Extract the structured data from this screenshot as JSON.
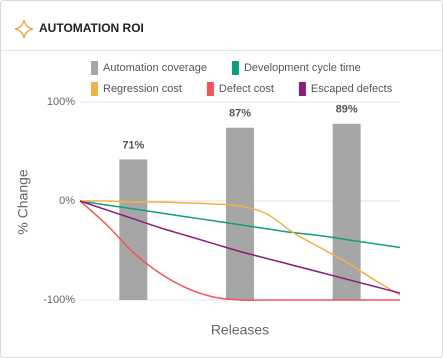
{
  "chart_data": {
    "type": "line",
    "title": "AUTOMATION ROI",
    "ylabel": "% Change",
    "xlabel": "Releases",
    "xlim": [
      0,
      3
    ],
    "ylim": [
      -100,
      100
    ],
    "yticks": [
      {
        "value": 100,
        "label": "100%"
      },
      {
        "value": 0,
        "label": "0%"
      },
      {
        "value": -100,
        "label": "-100%"
      }
    ],
    "y2lim": [
      0,
      100
    ],
    "grid": true,
    "x": [
      0,
      0.25,
      0.5,
      0.75,
      1,
      1.25,
      1.5,
      1.75,
      2,
      2.25,
      2.5,
      2.75,
      3
    ],
    "series": [
      {
        "name": "Automation coverage",
        "type": "bar",
        "axis": "y2",
        "color": "#a6a6a6",
        "x": [
          0.5,
          1.5,
          2.5
        ],
        "values": [
          71,
          87,
          89
        ],
        "value_labels": [
          "71%",
          "87%",
          "89%"
        ]
      },
      {
        "name": "Development cycle time",
        "color": "#119e7a",
        "values": [
          0,
          -4,
          -8,
          -12,
          -16,
          -20,
          -24,
          -28,
          -32,
          -35,
          -39,
          -43,
          -47
        ]
      },
      {
        "name": "Regression cost",
        "color": "#f2b049",
        "values": [
          0,
          0,
          -1,
          -1,
          -2,
          -3,
          -5,
          -13,
          -32,
          -47,
          -62,
          -79,
          -95
        ]
      },
      {
        "name": "Defect cost",
        "color": "#f0535c",
        "values": [
          0,
          -24,
          -52,
          -73,
          -88,
          -97,
          -100,
          -100,
          -100,
          -100,
          -100,
          -100,
          -100
        ]
      },
      {
        "name": "Escaped defects",
        "color": "#8c1c7c",
        "values": [
          0,
          -9,
          -18,
          -27,
          -35,
          -43,
          -51,
          -58,
          -65,
          -72,
          -79,
          -86,
          -93
        ]
      }
    ]
  }
}
